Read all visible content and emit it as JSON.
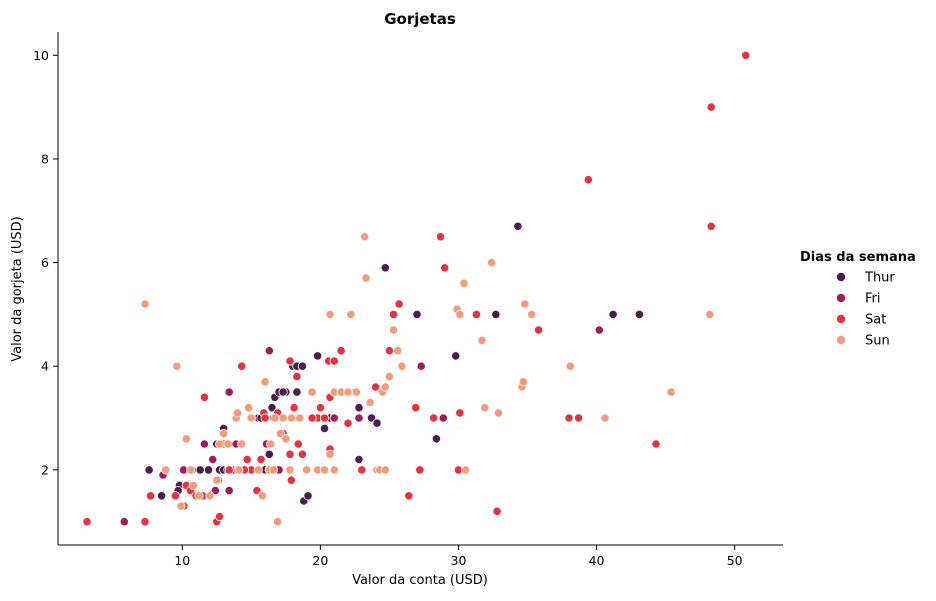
{
  "chart_data": {
    "type": "scatter",
    "title": "Gorjetas",
    "xlabel": "Valor da conta (USD)",
    "ylabel": "Valor da gorjeta (USD)",
    "xlim": [
      1.0,
      53.5
    ],
    "ylim": [
      0.55,
      10.45
    ],
    "xticks": [
      10,
      20,
      30,
      40,
      50
    ],
    "yticks": [
      2,
      4,
      6,
      8,
      10
    ],
    "grid": false,
    "legend": {
      "title": "Dias da semana",
      "placement": "right"
    },
    "series": [
      {
        "name": "Thur",
        "color": "#4c1d4b",
        "points": [
          [
            7.6,
            2.0
          ],
          [
            8.5,
            1.5
          ],
          [
            9.8,
            1.7
          ],
          [
            10.1,
            2.0
          ],
          [
            10.3,
            1.7
          ],
          [
            10.7,
            2.0
          ],
          [
            11.3,
            2.0
          ],
          [
            11.9,
            2.0
          ],
          [
            12.5,
            2.5
          ],
          [
            12.7,
            2.0
          ],
          [
            13.0,
            2.0
          ],
          [
            13.3,
            2.0
          ],
          [
            13.4,
            1.6
          ],
          [
            14.0,
            2.5
          ],
          [
            14.3,
            2.5
          ],
          [
            15.5,
            3.0
          ],
          [
            16.0,
            2.0
          ],
          [
            16.3,
            2.3
          ],
          [
            16.5,
            3.2
          ],
          [
            16.7,
            3.4
          ],
          [
            17.0,
            3.5
          ],
          [
            17.5,
            3.5
          ],
          [
            18.0,
            4.0
          ],
          [
            18.3,
            4.0
          ],
          [
            18.7,
            4.0
          ],
          [
            18.3,
            3.5
          ],
          [
            18.8,
            1.4
          ],
          [
            19.1,
            1.5
          ],
          [
            19.5,
            3.0
          ],
          [
            19.8,
            4.2
          ],
          [
            20.3,
            2.8
          ],
          [
            20.7,
            3.0
          ],
          [
            21.0,
            3.0
          ],
          [
            22.8,
            2.2
          ],
          [
            23.7,
            3.0
          ],
          [
            24.1,
            2.9
          ],
          [
            24.7,
            5.9
          ],
          [
            27.0,
            5.0
          ],
          [
            28.4,
            2.6
          ],
          [
            29.8,
            4.2
          ],
          [
            32.7,
            5.0
          ],
          [
            34.3,
            6.7
          ],
          [
            34.8,
            5.2
          ],
          [
            41.2,
            5.0
          ],
          [
            43.1,
            5.0
          ],
          [
            17.3,
            3.5
          ],
          [
            15.7,
            3.0
          ],
          [
            12.6,
            1.8
          ],
          [
            11.0,
            1.5
          ],
          [
            9.7,
            1.6
          ],
          [
            13.8,
            2.0
          ],
          [
            16.6,
            3.0
          ],
          [
            22.8,
            3.2
          ],
          [
            13.0,
            2.8
          ]
        ]
      },
      {
        "name": "Fri",
        "color": "#a11a5b",
        "points": [
          [
            5.8,
            1.0
          ],
          [
            8.6,
            1.9
          ],
          [
            10.1,
            2.0
          ],
          [
            11.6,
            2.5
          ],
          [
            12.2,
            2.2
          ],
          [
            12.4,
            1.6
          ],
          [
            13.4,
            1.6
          ],
          [
            13.4,
            3.5
          ],
          [
            13.9,
            2.5
          ],
          [
            15.0,
            3.0
          ],
          [
            16.1,
            2.5
          ],
          [
            16.3,
            4.3
          ],
          [
            17.0,
            2.0
          ],
          [
            21.0,
            3.0
          ],
          [
            22.8,
            3.0
          ],
          [
            27.3,
            4.0
          ],
          [
            28.9,
            3.0
          ],
          [
            40.2,
            4.7
          ],
          [
            13.0,
            2.5
          ]
        ]
      },
      {
        "name": "Sat",
        "color": "#e13342",
        "points": [
          [
            3.1,
            1.0
          ],
          [
            7.3,
            1.0
          ],
          [
            7.7,
            1.5
          ],
          [
            9.5,
            1.5
          ],
          [
            10.1,
            1.3
          ],
          [
            10.3,
            1.7
          ],
          [
            10.6,
            1.6
          ],
          [
            11.0,
            1.5
          ],
          [
            11.5,
            1.5
          ],
          [
            11.6,
            3.4
          ],
          [
            12.0,
            1.5
          ],
          [
            12.5,
            1.0
          ],
          [
            12.7,
            1.1
          ],
          [
            13.0,
            2.5
          ],
          [
            13.4,
            2.0
          ],
          [
            14.0,
            2.0
          ],
          [
            14.3,
            4.0
          ],
          [
            14.7,
            2.2
          ],
          [
            15.0,
            2.0
          ],
          [
            15.4,
            1.6
          ],
          [
            15.7,
            2.2
          ],
          [
            15.9,
            3.1
          ],
          [
            16.3,
            2.0
          ],
          [
            16.9,
            3.1
          ],
          [
            17.3,
            2.7
          ],
          [
            17.8,
            2.3
          ],
          [
            17.9,
            1.8
          ],
          [
            18.1,
            3.2
          ],
          [
            18.3,
            3.8
          ],
          [
            18.4,
            2.5
          ],
          [
            18.7,
            2.3
          ],
          [
            19.8,
            3.0
          ],
          [
            20.0,
            3.2
          ],
          [
            20.3,
            3.0
          ],
          [
            20.6,
            4.1
          ],
          [
            20.7,
            3.4
          ],
          [
            20.7,
            2.4
          ],
          [
            21.0,
            4.1
          ],
          [
            21.5,
            4.3
          ],
          [
            22.0,
            2.9
          ],
          [
            22.5,
            3.5
          ],
          [
            23.0,
            2.0
          ],
          [
            24.0,
            3.6
          ],
          [
            24.1,
            2.0
          ],
          [
            25.0,
            4.3
          ],
          [
            25.3,
            5.0
          ],
          [
            25.7,
            5.2
          ],
          [
            26.4,
            1.5
          ],
          [
            26.9,
            3.2
          ],
          [
            27.2,
            2.0
          ],
          [
            28.2,
            3.0
          ],
          [
            28.7,
            6.5
          ],
          [
            29.0,
            5.9
          ],
          [
            30.1,
            3.1
          ],
          [
            30.0,
            2.0
          ],
          [
            31.3,
            5.0
          ],
          [
            32.8,
            1.2
          ],
          [
            35.8,
            4.7
          ],
          [
            38.0,
            3.0
          ],
          [
            38.7,
            3.0
          ],
          [
            39.4,
            7.6
          ],
          [
            44.3,
            2.5
          ],
          [
            48.3,
            6.7
          ],
          [
            48.3,
            9.0
          ],
          [
            50.8,
            10.0
          ],
          [
            17.8,
            4.1
          ],
          [
            14.5,
            2.0
          ],
          [
            20.2,
            2.0
          ],
          [
            16.0,
            3.0
          ],
          [
            19.4,
            3.0
          ]
        ]
      },
      {
        "name": "Sun",
        "color": "#f19c7c",
        "points": [
          [
            7.3,
            5.2
          ],
          [
            8.8,
            2.0
          ],
          [
            9.6,
            4.0
          ],
          [
            9.9,
            1.3
          ],
          [
            10.3,
            2.6
          ],
          [
            10.8,
            1.7
          ],
          [
            11.2,
            1.5
          ],
          [
            12.0,
            1.5
          ],
          [
            12.5,
            1.8
          ],
          [
            12.7,
            2.5
          ],
          [
            13.0,
            2.7
          ],
          [
            13.3,
            2.5
          ],
          [
            13.9,
            3.0
          ],
          [
            14.0,
            3.1
          ],
          [
            14.3,
            2.5
          ],
          [
            14.8,
            3.2
          ],
          [
            15.0,
            3.0
          ],
          [
            15.5,
            2.0
          ],
          [
            15.8,
            1.5
          ],
          [
            16.0,
            3.7
          ],
          [
            16.3,
            2.0
          ],
          [
            16.4,
            2.5
          ],
          [
            16.7,
            3.0
          ],
          [
            16.9,
            1.0
          ],
          [
            17.1,
            2.7
          ],
          [
            17.3,
            3.0
          ],
          [
            17.5,
            2.6
          ],
          [
            17.8,
            2.0
          ],
          [
            18.0,
            3.0
          ],
          [
            18.3,
            3.0
          ],
          [
            18.5,
            3.0
          ],
          [
            19.0,
            2.0
          ],
          [
            19.4,
            3.5
          ],
          [
            19.8,
            2.0
          ],
          [
            20.3,
            2.0
          ],
          [
            20.7,
            2.3
          ],
          [
            20.7,
            5.0
          ],
          [
            21.0,
            3.5
          ],
          [
            21.5,
            3.5
          ],
          [
            22.2,
            5.0
          ],
          [
            22.6,
            3.5
          ],
          [
            23.2,
            6.5
          ],
          [
            23.3,
            5.7
          ],
          [
            23.6,
            3.3
          ],
          [
            24.1,
            2.0
          ],
          [
            24.3,
            2.0
          ],
          [
            24.5,
            3.5
          ],
          [
            24.7,
            3.6
          ],
          [
            25.0,
            3.8
          ],
          [
            25.3,
            4.7
          ],
          [
            25.6,
            4.3
          ],
          [
            25.9,
            4.0
          ],
          [
            29.9,
            5.1
          ],
          [
            30.1,
            5.0
          ],
          [
            30.4,
            5.6
          ],
          [
            30.5,
            2.0
          ],
          [
            31.7,
            4.5
          ],
          [
            31.9,
            3.2
          ],
          [
            32.4,
            6.0
          ],
          [
            32.9,
            3.1
          ],
          [
            34.6,
            3.6
          ],
          [
            34.7,
            3.7
          ],
          [
            34.8,
            5.2
          ],
          [
            35.3,
            5.0
          ],
          [
            38.1,
            4.0
          ],
          [
            40.6,
            3.0
          ],
          [
            45.4,
            3.5
          ],
          [
            48.2,
            5.0
          ],
          [
            13.0,
            2.7
          ],
          [
            17.9,
            3.0
          ],
          [
            14.1,
            2.0
          ],
          [
            21.0,
            2.0
          ],
          [
            24.7,
            2.0
          ],
          [
            22.0,
            3.5
          ],
          [
            16.6,
            2.0
          ],
          [
            10.6,
            2.0
          ]
        ]
      }
    ]
  }
}
